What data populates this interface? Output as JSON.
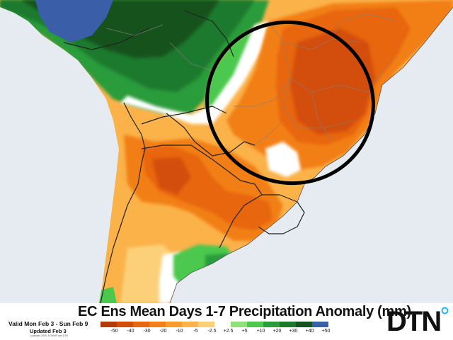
{
  "title": "EC Ens Mean Days 1-7 Precipitation Anomaly (mm)",
  "valid_text": "Valid Mon Feb 3 - Sun Feb 9",
  "updated_text": "Updated Feb 3",
  "copyright_text": "Copyright 2025, ECMWF and DTN",
  "logo_text": "DTN",
  "colors": {
    "ocean": "#e6ebf1",
    "logo_accent": "#1fb8e8",
    "circle": "#000000"
  },
  "legend": {
    "labels": [
      "-50",
      "-40",
      "-30",
      "-20",
      "-10",
      "-5",
      "-2.5",
      "+2.5",
      "+5",
      "+10",
      "+20",
      "+30",
      "+40",
      "+50"
    ],
    "colors": [
      "#b33b07",
      "#d34d09",
      "#e8660f",
      "#f27f18",
      "#f89a2c",
      "#fbb249",
      "#fcd079",
      "#ffffff",
      "#8fe07a",
      "#4cc84e",
      "#2b9c3a",
      "#1d7a2d",
      "#15521f",
      "#3a5ea8"
    ]
  }
}
